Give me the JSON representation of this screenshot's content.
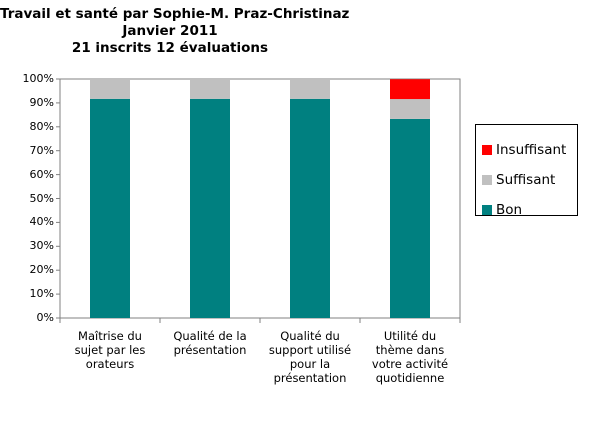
{
  "title_lines": [
    "Travail et santé par Sophie-M. Praz-Christinaz",
    "Janvier 2011",
    "21 inscrits 12 évaluations"
  ],
  "chart_data": {
    "type": "bar",
    "stacked": true,
    "categories": [
      [
        "Maîtrise du",
        "sujet par les",
        "orateurs"
      ],
      [
        "Qualité de la",
        "présentation"
      ],
      [
        "Qualité du",
        "support utilisé",
        "pour la",
        "présentation"
      ],
      [
        "Utilité du",
        "thème dans",
        "votre activité",
        "quotidienne"
      ]
    ],
    "series": [
      {
        "name": "Bon",
        "color": "#008080",
        "values": [
          91.7,
          91.7,
          91.7,
          83.3
        ]
      },
      {
        "name": "Suffisant",
        "color": "#c0c0c0",
        "values": [
          8.3,
          8.3,
          8.3,
          8.3
        ]
      },
      {
        "name": "Insuffisant",
        "color": "#ff0000",
        "values": [
          0,
          0,
          0,
          8.3
        ]
      }
    ],
    "ylim": [
      0,
      100
    ],
    "yticks": [
      "0%",
      "10%",
      "20%",
      "30%",
      "40%",
      "50%",
      "60%",
      "70%",
      "80%",
      "90%",
      "100%"
    ],
    "grid": false,
    "legend_position": "right",
    "legend_order": [
      "Insuffisant",
      "Suffisant",
      "Bon"
    ]
  }
}
